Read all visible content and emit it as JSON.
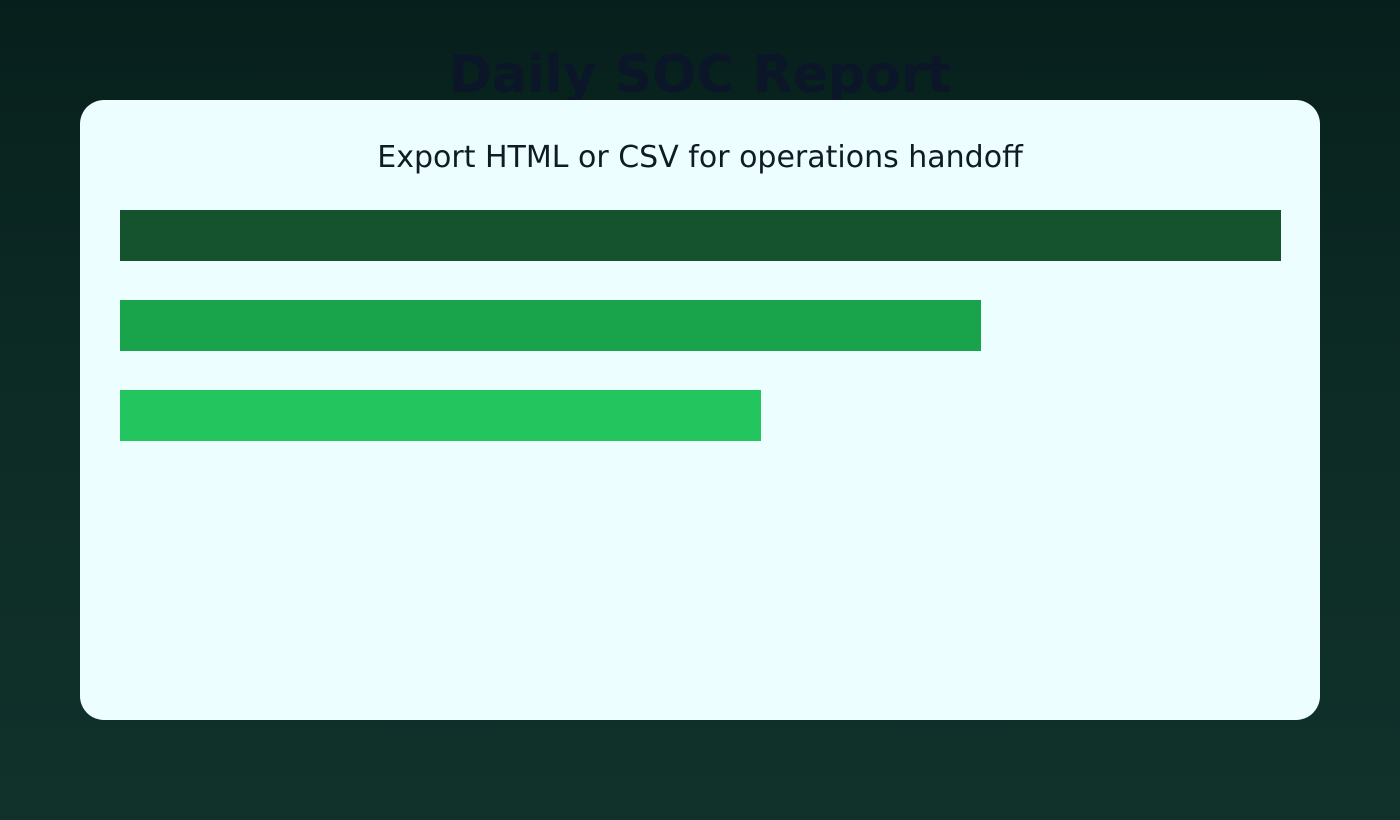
{
  "page": {
    "title": "Daily SOC Report",
    "subtitle": "Export HTML or CSV for operations handoff"
  },
  "bars": [
    {
      "level": 1.0,
      "color": "#15532e"
    },
    {
      "level": 0.742,
      "color": "#19a34a"
    },
    {
      "level": 0.552,
      "color": "#22c55e"
    }
  ],
  "colors": {
    "background": "#0b2622",
    "card": "#ecfeff",
    "title_text": "#0b1628",
    "subtitle_text": "#0f1c24"
  }
}
